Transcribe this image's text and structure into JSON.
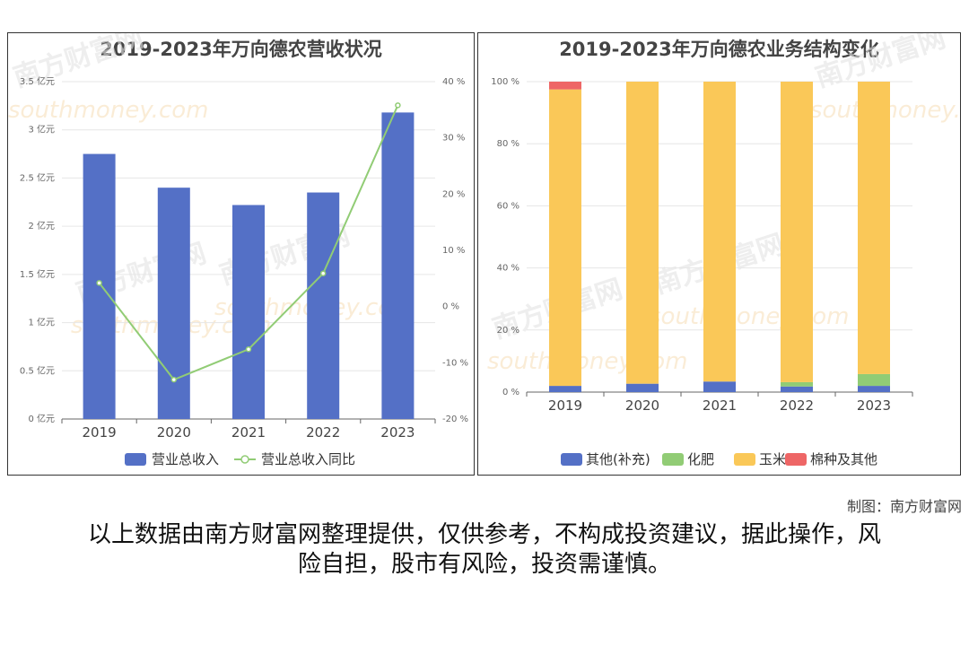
{
  "credit": "制图：南方财富网",
  "disclaimer": {
    "line1": "以上数据由南方财富网整理提供，仅供参考，不构成投资建议，据此操作，风",
    "line2": "险自担，股市有风险，投资需谨慎。"
  },
  "watermark": {
    "cn": "南方财富网",
    "en": "southmoney.com"
  },
  "colors": {
    "bar": "#5470c6",
    "line": "#91cc75",
    "other": "#5470c6",
    "fert": "#91cc75",
    "corn": "#fac858",
    "cotton": "#ee6666"
  },
  "chart_data": [
    {
      "type": "bar",
      "title": "2019-2023年万向德农营收状况",
      "categories": [
        "2019",
        "2020",
        "2021",
        "2022",
        "2023"
      ],
      "y_ticks": [
        "0 亿元",
        "0.5 亿元",
        "1 亿元",
        "1.5 亿元",
        "2 亿元",
        "2.5 亿元",
        "3 亿元",
        "3.5 亿元"
      ],
      "y2_ticks": [
        "-20 %",
        "-10 %",
        "0 %",
        "10 %",
        "20 %",
        "30 %",
        "40 %"
      ],
      "ylim": [
        0,
        3.5
      ],
      "y2lim": [
        -20,
        40
      ],
      "series": [
        {
          "name": "营业总收入",
          "type": "bar",
          "values": [
            2.75,
            2.4,
            2.22,
            2.35,
            3.18
          ]
        },
        {
          "name": "营业总收入同比",
          "type": "line",
          "values": [
            4.2,
            -13.0,
            -7.6,
            5.9,
            35.8
          ]
        }
      ]
    },
    {
      "type": "bar",
      "stacked": true,
      "title": "2019-2023年万向德农业务结构变化",
      "categories": [
        "2019",
        "2020",
        "2021",
        "2022",
        "2023"
      ],
      "y_ticks": [
        "0 %",
        "20 %",
        "40 %",
        "60 %",
        "80 %",
        "100 %"
      ],
      "ylim": [
        0,
        100
      ],
      "series": [
        {
          "name": "其他(补充)",
          "values": [
            2.0,
            2.7,
            3.4,
            1.8,
            2.0
          ]
        },
        {
          "name": "化肥",
          "values": [
            0,
            0,
            0,
            1.4,
            3.8
          ]
        },
        {
          "name": "玉米",
          "values": [
            95.5,
            97.3,
            96.6,
            96.8,
            94.2
          ]
        },
        {
          "name": "棉种及其他",
          "values": [
            2.5,
            0,
            0,
            0,
            0
          ]
        }
      ]
    }
  ]
}
